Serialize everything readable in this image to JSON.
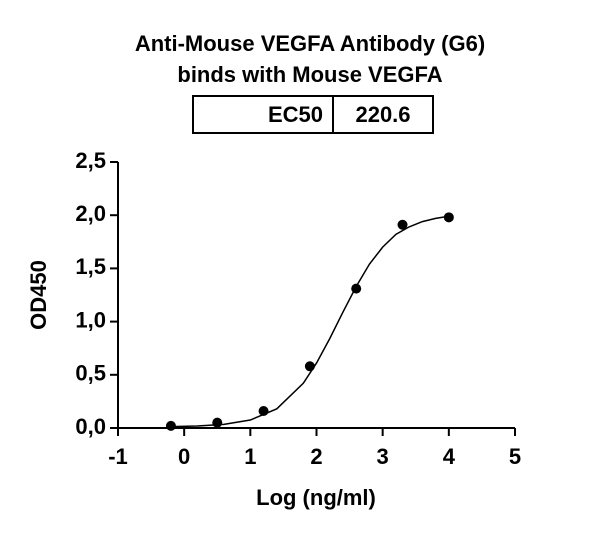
{
  "chart_data": {
    "type": "scatter",
    "title": [
      "Anti-Mouse VEGFA Antibody (G6)",
      "binds with Mouse VEGFA"
    ],
    "ec50_label": "EC50",
    "ec50_value": 220.6,
    "x_label": "Log (ng/ml)",
    "y_label": "OD450",
    "xlim": [
      -1,
      5
    ],
    "xticks": [
      -1,
      0,
      1,
      2,
      3,
      4,
      5
    ],
    "ylim": [
      0,
      2.5
    ],
    "yticks": [
      {
        "value": 0,
        "label": "0,0"
      },
      {
        "value": 0.5,
        "label": "0,5"
      },
      {
        "value": 1,
        "label": "1,0"
      },
      {
        "value": 1.5,
        "label": "1,5"
      },
      {
        "value": 2,
        "label": "2,0"
      },
      {
        "value": 2.5,
        "label": "2,5"
      }
    ],
    "series": [
      {
        "type": "scatter",
        "color": "#000000",
        "x": [
          -0.2,
          0.5,
          1.2,
          1.9,
          2.6,
          3.3,
          4.0
        ],
        "values": [
          0.02,
          0.05,
          0.16,
          0.58,
          1.31,
          1.91,
          1.98
        ]
      },
      {
        "type": "line",
        "color": "#000000",
        "x": [
          -0.2,
          0.2,
          0.6,
          1.0,
          1.4,
          1.8,
          2.0,
          2.2,
          2.4,
          2.6,
          2.8,
          3.0,
          3.2,
          3.4,
          3.6,
          3.8,
          4.0
        ],
        "values": [
          0.013,
          0.019,
          0.034,
          0.075,
          0.18,
          0.42,
          0.61,
          0.84,
          1.09,
          1.33,
          1.54,
          1.7,
          1.82,
          1.89,
          1.94,
          1.97,
          1.99
        ]
      }
    ]
  }
}
